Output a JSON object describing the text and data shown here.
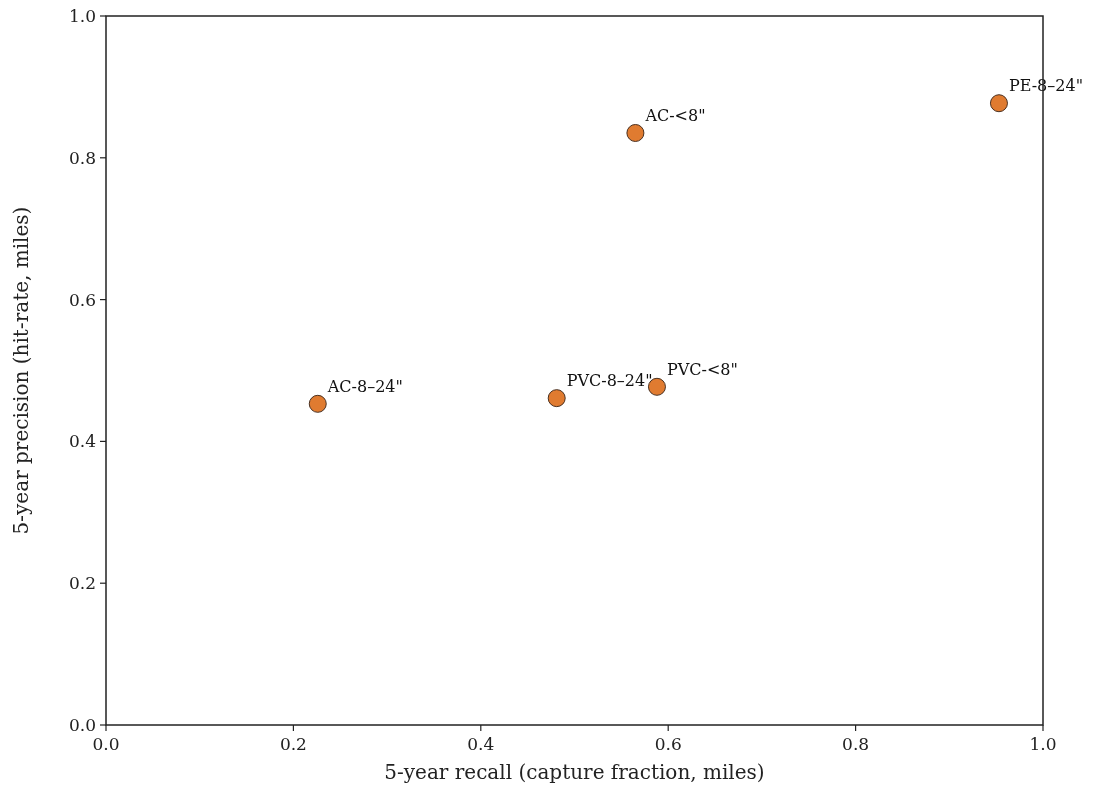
{
  "chart_data": {
    "type": "scatter",
    "xlabel": "5-year recall (capture fraction, miles)",
    "ylabel": "5-year precision (hit-rate, miles)",
    "x": [
      0.226,
      0.481,
      0.588,
      0.565,
      0.953
    ],
    "series": [
      {
        "color": "#e07b30",
        "values": [
          0.453,
          0.461,
          0.477,
          0.835,
          0.877
        ]
      }
    ],
    "marker": "circle",
    "xlim": [
      0,
      1
    ],
    "ylim": [
      0,
      1
    ],
    "xticks": [
      {
        "value": 0,
        "label": "0.0"
      },
      {
        "value": 0.2,
        "label": "0.2"
      },
      {
        "value": 0.4,
        "label": "0.4"
      },
      {
        "value": 0.6,
        "label": "0.6"
      },
      {
        "value": 0.8,
        "label": "0.8"
      },
      {
        "value": 1,
        "label": "1.0"
      }
    ],
    "yticks": [
      {
        "value": 0,
        "label": "0.0"
      },
      {
        "value": 0.2,
        "label": "0.2"
      },
      {
        "value": 0.4,
        "label": "0.4"
      },
      {
        "value": 0.6,
        "label": "0.6"
      },
      {
        "value": 0.8,
        "label": "0.8"
      },
      {
        "value": 1,
        "label": "1.0"
      }
    ],
    "annotations": [
      {
        "text": "AC-8–24\"",
        "x": 0.226,
        "y": 0.453
      },
      {
        "text": "PVC-8–24\"",
        "x": 0.481,
        "y": 0.461
      },
      {
        "text": "PVC-<8\"",
        "x": 0.588,
        "y": 0.477
      },
      {
        "text": "AC-<8\"",
        "x": 0.565,
        "y": 0.835
      },
      {
        "text": "PE-8–24\"",
        "x": 0.953,
        "y": 0.877
      }
    ]
  }
}
